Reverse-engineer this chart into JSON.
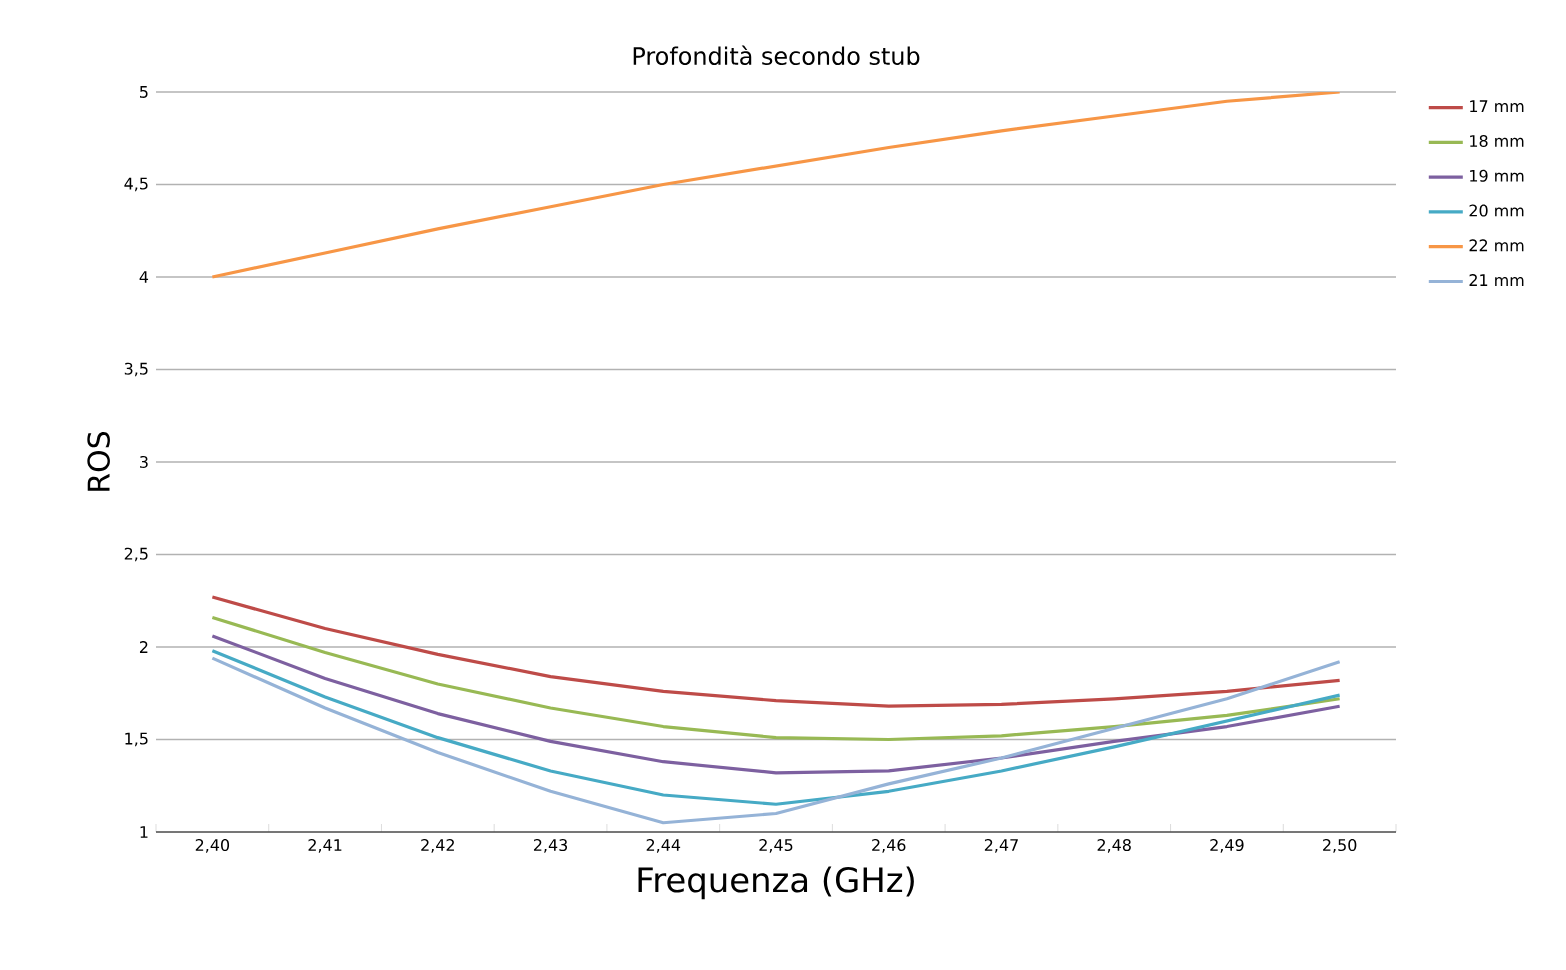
{
  "chart_data": {
    "type": "line",
    "title": "Profondità secondo stub",
    "xlabel": "Frequenza (GHz)",
    "ylabel": "ROS",
    "categories": [
      "2,40",
      "2,41",
      "2,42",
      "2,43",
      "2,44",
      "2,45",
      "2,46",
      "2,47",
      "2,48",
      "2,49",
      "2,50"
    ],
    "ylim": [
      1,
      5
    ],
    "yticks": [
      1,
      {
        "value": 1.5,
        "label": "1,5"
      },
      2,
      {
        "value": 2.5,
        "label": "2,5"
      },
      3,
      {
        "value": 3.5,
        "label": "3,5"
      },
      4,
      {
        "value": 4.5,
        "label": "4,5"
      },
      5
    ],
    "grid": "y",
    "legend": "right",
    "marker": "none",
    "series": [
      {
        "name": "17 mm",
        "color": "#be4b48",
        "values": [
          2.27,
          2.1,
          1.96,
          1.84,
          1.76,
          1.71,
          1.68,
          1.69,
          1.72,
          1.76,
          1.82
        ]
      },
      {
        "name": "18 mm",
        "color": "#98b954",
        "values": [
          2.16,
          1.97,
          1.8,
          1.67,
          1.57,
          1.51,
          1.5,
          1.52,
          1.57,
          1.63,
          1.72
        ]
      },
      {
        "name": "19 mm",
        "color": "#7d60a0",
        "values": [
          2.06,
          1.83,
          1.64,
          1.49,
          1.38,
          1.32,
          1.33,
          1.4,
          1.49,
          1.57,
          1.68
        ]
      },
      {
        "name": "20 mm",
        "color": "#46aac5",
        "values": [
          1.98,
          1.73,
          1.51,
          1.33,
          1.2,
          1.15,
          1.22,
          1.33,
          1.46,
          1.6,
          1.74
        ]
      },
      {
        "name": "22 mm",
        "color": "#f79646",
        "values": [
          4.0,
          4.13,
          4.26,
          4.38,
          4.5,
          4.6,
          4.7,
          4.79,
          4.87,
          4.95,
          5.0
        ]
      },
      {
        "name": "21 mm",
        "color": "#95b3d7",
        "values": [
          1.94,
          1.67,
          1.43,
          1.22,
          1.05,
          1.1,
          1.26,
          1.4,
          1.56,
          1.72,
          1.92
        ]
      }
    ]
  }
}
